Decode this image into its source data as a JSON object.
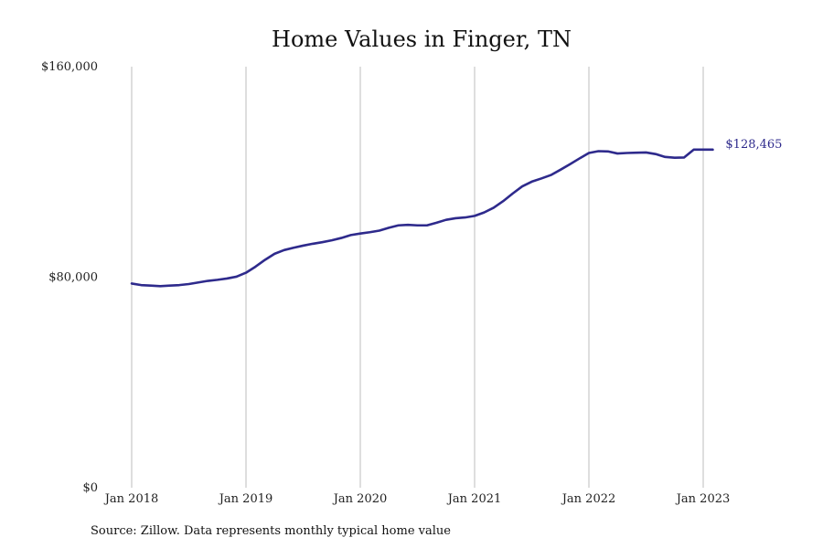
{
  "chart_data": {
    "type": "line",
    "title": "Home Values in Finger, TN",
    "xlabel": "",
    "ylabel": "",
    "ylim": [
      0,
      160000
    ],
    "y_ticks": [
      0,
      80000,
      160000
    ],
    "y_tick_labels": [
      "$0",
      "$80,000",
      "$160,000"
    ],
    "x_ticks": [
      "2018-01",
      "2019-01",
      "2020-01",
      "2021-01",
      "2022-01",
      "2023-01"
    ],
    "x_tick_labels": [
      "Jan 2018",
      "Jan 2019",
      "Jan 2020",
      "Jan 2021",
      "Jan 2022",
      "Jan 2023"
    ],
    "grid": "vertical",
    "line_color": "#2e2a8c",
    "end_label": "$128,465",
    "series": [
      {
        "x": [
          "2018-01",
          "2018-02",
          "2018-03",
          "2018-04",
          "2018-05",
          "2018-06",
          "2018-07",
          "2018-08",
          "2018-09",
          "2018-10",
          "2018-11",
          "2018-12",
          "2019-01",
          "2019-02",
          "2019-03",
          "2019-04",
          "2019-05",
          "2019-06",
          "2019-07",
          "2019-08",
          "2019-09",
          "2019-10",
          "2019-11",
          "2019-12",
          "2020-01",
          "2020-02",
          "2020-03",
          "2020-04",
          "2020-05",
          "2020-06",
          "2020-07",
          "2020-08",
          "2020-09",
          "2020-10",
          "2020-11",
          "2020-12",
          "2021-01",
          "2021-02",
          "2021-03",
          "2021-04",
          "2021-05",
          "2021-06",
          "2021-07",
          "2021-08",
          "2021-09",
          "2021-10",
          "2021-11",
          "2021-12",
          "2022-01",
          "2022-02",
          "2022-03",
          "2022-04",
          "2022-05",
          "2022-06",
          "2022-07",
          "2022-08",
          "2022-09",
          "2022-10",
          "2022-11",
          "2022-12",
          "2023-01",
          "2023-02"
        ],
        "values": [
          77600,
          77000,
          76800,
          76600,
          76800,
          77000,
          77400,
          78000,
          78600,
          79000,
          79500,
          80200,
          81700,
          84000,
          86600,
          88900,
          90300,
          91200,
          92000,
          92700,
          93300,
          94000,
          94900,
          96000,
          96600,
          97100,
          97700,
          98800,
          99700,
          99900,
          99700,
          99700,
          100700,
          101800,
          102400,
          102700,
          103300,
          104600,
          106400,
          108900,
          111800,
          114500,
          116300,
          117500,
          118800,
          120800,
          122900,
          125100,
          127200,
          127900,
          127800,
          127000,
          127200,
          127300,
          127400,
          126800,
          125700,
          125400,
          125500,
          128465,
          128465,
          128465
        ]
      }
    ]
  },
  "source_note": "Source: Zillow. Data represents monthly typical home value"
}
